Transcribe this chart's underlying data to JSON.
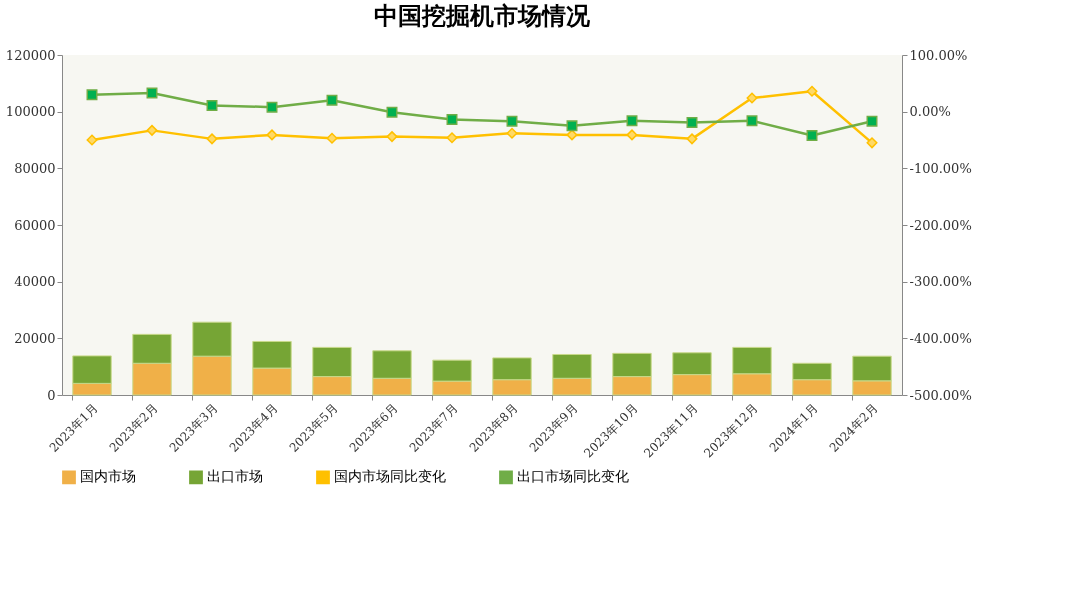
{
  "chart_data": {
    "type": "bar",
    "title": "中国挖掘机市场情况",
    "stacked": true,
    "legend": "bottom",
    "grid": false,
    "categories": [
      "2023年1月",
      "2023年2月",
      "2023年3月",
      "2023年4月",
      "2023年5月",
      "2023年6月",
      "2023年7月",
      "2023年8月",
      "2023年9月",
      "2023年10月",
      "2023年11月",
      "2023年12月",
      "2024年1月",
      "2024年2月"
    ],
    "ylim": [
      0,
      120000
    ],
    "yticks": [
      0,
      20000,
      40000,
      60000,
      80000,
      100000,
      120000
    ],
    "y2lim": [
      -500,
      100
    ],
    "y2ticks": [
      {
        "value": -500,
        "label": "-500.00%"
      },
      {
        "value": -400,
        "label": "-400.00%"
      },
      {
        "value": -300,
        "label": "-300.00%"
      },
      {
        "value": -200,
        "label": "-200.00%"
      },
      {
        "value": -100,
        "label": "-100.00%"
      },
      {
        "value": 0,
        "label": "0.00%"
      },
      {
        "value": 100,
        "label": "100.00%"
      }
    ],
    "series": [
      {
        "name": "国内市场",
        "color": "#f0b048",
        "values": [
          4100,
          11200,
          13700,
          9500,
          6500,
          5900,
          4900,
          5400,
          5900,
          6500,
          7200,
          7500,
          5400,
          5000
        ]
      },
      {
        "name": "出口市场",
        "color": "#76a535",
        "values": [
          9700,
          10200,
          12000,
          9400,
          10300,
          9700,
          7400,
          7700,
          8400,
          8200,
          7700,
          9300,
          5800,
          8700
        ]
      },
      {
        "name": "国内市场同比变化",
        "type": "line",
        "axis": "y2",
        "color": "#ffc000",
        "marker": "diamond",
        "line_style": "solid",
        "values": [
          -50,
          -33,
          -48,
          -41,
          -47,
          -44,
          -46,
          -38,
          -41,
          -41,
          -48,
          24,
          36,
          -55
        ]
      },
      {
        "name": "出口市场同比变化",
        "type": "line",
        "axis": "y2",
        "color": "#70ad47",
        "marker": "square",
        "line_style": "solid",
        "values": [
          30,
          33,
          11,
          8,
          20,
          -1,
          -14,
          -17,
          -25,
          -16,
          -19,
          -16,
          -42,
          -17
        ]
      }
    ]
  }
}
